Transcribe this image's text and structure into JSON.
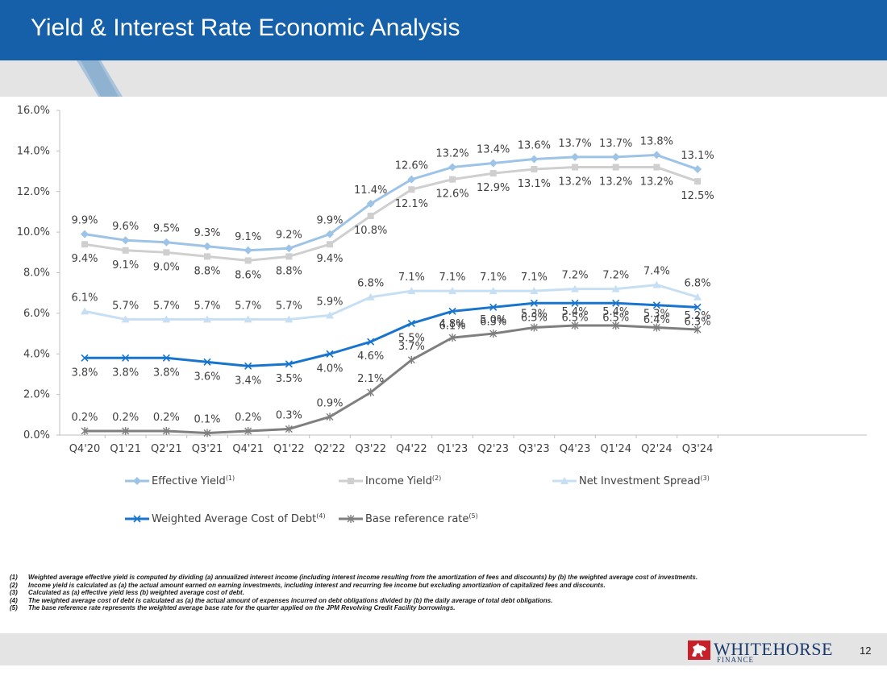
{
  "header": {
    "title": "Yield & Interest Rate Economic Analysis"
  },
  "chart_data": {
    "type": "line",
    "categories": [
      "Q4'20",
      "Q1'21",
      "Q2'21",
      "Q3'21",
      "Q4'21",
      "Q1'22",
      "Q2'22",
      "Q3'22",
      "Q4'22",
      "Q1'23",
      "Q2'23",
      "Q3'23",
      "Q4'23",
      "Q1'24",
      "Q2'24",
      "Q3'24"
    ],
    "ylim": [
      0,
      16
    ],
    "yticks": [
      "0.0%",
      "2.0%",
      "4.0%",
      "6.0%",
      "8.0%",
      "10.0%",
      "12.0%",
      "14.0%",
      "16.0%"
    ],
    "series": [
      {
        "name": "Effective Yield",
        "sup": "(1)",
        "color": "#9dc3e6",
        "marker": "diamond",
        "label_pos": "above",
        "values": [
          9.9,
          9.6,
          9.5,
          9.3,
          9.1,
          9.2,
          9.9,
          11.4,
          12.6,
          13.2,
          13.4,
          13.6,
          13.7,
          13.7,
          13.8,
          13.1
        ],
        "labels": [
          "9.9%",
          "9.6%",
          "9.5%",
          "9.3%",
          "9.1%",
          "9.2%",
          "9.9%",
          "11.4%",
          "12.6%",
          "13.2%",
          "13.4%",
          "13.6%",
          "13.7%",
          "13.7%",
          "13.8%",
          "13.1%"
        ]
      },
      {
        "name": "Income Yield",
        "sup": "(2)",
        "color": "#cfcfcf",
        "marker": "square",
        "label_pos": "below",
        "values": [
          9.4,
          9.1,
          9.0,
          8.8,
          8.6,
          8.8,
          9.4,
          10.8,
          12.1,
          12.6,
          12.9,
          13.1,
          13.2,
          13.2,
          13.2,
          12.5
        ],
        "labels": [
          "9.4%",
          "9.1%",
          "9.0%",
          "8.8%",
          "8.6%",
          "8.8%",
          "9.4%",
          "10.8%",
          "12.1%",
          "12.6%",
          "12.9%",
          "13.1%",
          "13.2%",
          "13.2%",
          "13.2%",
          "12.5%"
        ]
      },
      {
        "name": "Net Investment Spread",
        "sup": "(3)",
        "color": "#c7dff3",
        "marker": "triangle",
        "label_pos": "above",
        "values": [
          6.1,
          5.7,
          5.7,
          5.7,
          5.7,
          5.7,
          5.9,
          6.8,
          7.1,
          7.1,
          7.1,
          7.1,
          7.2,
          7.2,
          7.4,
          6.8
        ],
        "labels": [
          "6.1%",
          "5.7%",
          "5.7%",
          "5.7%",
          "5.7%",
          "5.7%",
          "5.9%",
          "6.8%",
          "7.1%",
          "7.1%",
          "7.1%",
          "7.1%",
          "7.2%",
          "7.2%",
          "7.4%",
          "6.8%"
        ]
      },
      {
        "name": "Weighted Average Cost of Debt",
        "sup": "(4)",
        "color": "#1874cd",
        "marker": "x",
        "label_pos": "below",
        "values": [
          3.8,
          3.8,
          3.8,
          3.6,
          3.4,
          3.5,
          4.0,
          4.6,
          5.5,
          6.1,
          6.3,
          6.5,
          6.5,
          6.5,
          6.4,
          6.3
        ],
        "labels": [
          "3.8%",
          "3.8%",
          "3.8%",
          "3.6%",
          "3.4%",
          "3.5%",
          "4.0%",
          "4.6%",
          "5.5%",
          "6.1%",
          "6.3%",
          "6.5%",
          "6.5%",
          "6.5%",
          "6.4%",
          "6.3%"
        ]
      },
      {
        "name": "Base reference rate",
        "sup": "(5)",
        "color": "#7f7f7f",
        "marker": "star",
        "label_pos": "above",
        "values": [
          0.2,
          0.2,
          0.2,
          0.1,
          0.2,
          0.3,
          0.9,
          2.1,
          3.7,
          4.8,
          5.0,
          5.3,
          5.4,
          5.4,
          5.3,
          5.2
        ],
        "labels": [
          "0.2%",
          "0.2%",
          "0.2%",
          "0.1%",
          "0.2%",
          "0.3%",
          "0.9%",
          "2.1%",
          "3.7%",
          "4.8%",
          "5.0%",
          "5.3%",
          "5.4%",
          "5.4%",
          "5.3%",
          "5.2%"
        ]
      }
    ]
  },
  "footnotes": [
    {
      "num": "(1)",
      "text": "Weighted average effective yield is computed by dividing (a) annualized interest income (including interest income resulting from the amortization of fees and discounts) by (b) the weighted average cost of investments."
    },
    {
      "num": "(2)",
      "text": "Income yield is calculated as (a) the actual amount earned on earning investments, including interest and recurring fee income but excluding amortization of capitalized fees and discounts."
    },
    {
      "num": "(3)",
      "text": "Calculated as (a) effective yield less (b) weighted average cost of debt."
    },
    {
      "num": "(4)",
      "text": "The weighted average cost of debt is calculated as (a) the actual amount of expenses incurred on debt obligations divided by (b) the daily average of total debt obligations."
    },
    {
      "num": "(5)",
      "text": "The base reference rate represents the weighted average base rate for the quarter applied on the JPM Revolving Credit Facility borrowings."
    }
  ],
  "footer": {
    "logo_main": "WHITEHORSE",
    "logo_sub": "FINANCE",
    "page_number": "12"
  },
  "colors": {
    "header_bg": "#1560a8",
    "band_bg": "#e4e4e4",
    "logo_red": "#c8202a",
    "logo_navy": "#1a3a6c"
  }
}
